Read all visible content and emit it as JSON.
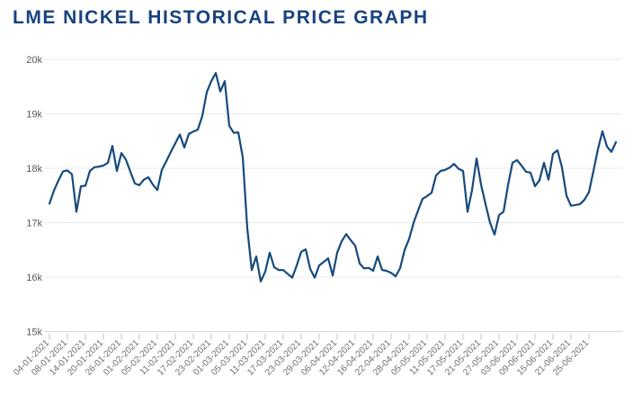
{
  "page": {
    "title": "LME NICKEL HISTORICAL PRICE GRAPH"
  },
  "colors": {
    "title": "#17437F",
    "line": "#164A7C",
    "gridline": "#E8E8E8",
    "axis_line": "#CDD9E3",
    "tick_mark": "#C2CFDD",
    "y_label": "#55585E",
    "x_label": "#6B7076",
    "background": "#FFFFFF"
  },
  "chart_data": {
    "type": "line",
    "title": "LME NICKEL HISTORICAL PRICE GRAPH",
    "xlabel": "",
    "ylabel": "",
    "ylim": [
      15000,
      20000
    ],
    "y_tick_step": 1000,
    "y_tick_labels": [
      "15k",
      "16k",
      "17k",
      "18k",
      "19k",
      "20k"
    ],
    "grid": "horizontal",
    "legend": "none",
    "tick_interval": 4,
    "tick_labels": [
      "04-01-2021",
      "08-01-2021",
      "14-01-2021",
      "20-01-2021",
      "26-01-2021",
      "01-02-2021",
      "05-02-2021",
      "11-02-2021",
      "17-02-2021",
      "23-02-2021",
      "01-03-2021",
      "05-03-2021",
      "11-03-2021",
      "17-03-2021",
      "23-03-2021",
      "29-03-2021",
      "06-04-2021",
      "12-04-2021",
      "16-04-2021",
      "22-04-2021",
      "28-04-2021",
      "05-05-2021",
      "11-05-2021",
      "17-05-2021",
      "21-05-2021",
      "27-05-2021",
      "03-06-2021",
      "09-06-2021",
      "15-06-2021",
      "21-06-2021",
      "25-06-2021"
    ],
    "values": [
      17350,
      17590,
      17775,
      17940,
      17960,
      17890,
      17200,
      17670,
      17680,
      17950,
      18020,
      18030,
      18050,
      18100,
      18410,
      17950,
      18280,
      18160,
      17935,
      17720,
      17690,
      17790,
      17835,
      17700,
      17600,
      17970,
      18130,
      18300,
      18460,
      18620,
      18380,
      18630,
      18675,
      18710,
      18960,
      19400,
      19600,
      19750,
      19410,
      19600,
      18780,
      18650,
      18660,
      18200,
      16900,
      16130,
      16380,
      15920,
      16100,
      16450,
      16180,
      16130,
      16130,
      16060,
      15990,
      16215,
      16465,
      16510,
      16150,
      15990,
      16215,
      16280,
      16345,
      16030,
      16450,
      16660,
      16790,
      16680,
      16580,
      16250,
      16160,
      16170,
      16115,
      16380,
      16130,
      16115,
      16080,
      16015,
      16165,
      16500,
      16700,
      17000,
      17225,
      17440,
      17490,
      17550,
      17870,
      17950,
      17970,
      18010,
      18080,
      17990,
      17950,
      17200,
      17600,
      18180,
      17700,
      17340,
      17000,
      16780,
      17140,
      17200,
      17690,
      18100,
      18150,
      18050,
      17935,
      17920,
      17670,
      17780,
      18100,
      17790,
      18265,
      18330,
      18015,
      17500,
      17310,
      17325,
      17340,
      17420,
      17560,
      17950,
      18350,
      18680,
      18400,
      18300,
      18480
    ]
  },
  "layout_note": "single line chart, no legend, x labels rotated 45 degrees"
}
